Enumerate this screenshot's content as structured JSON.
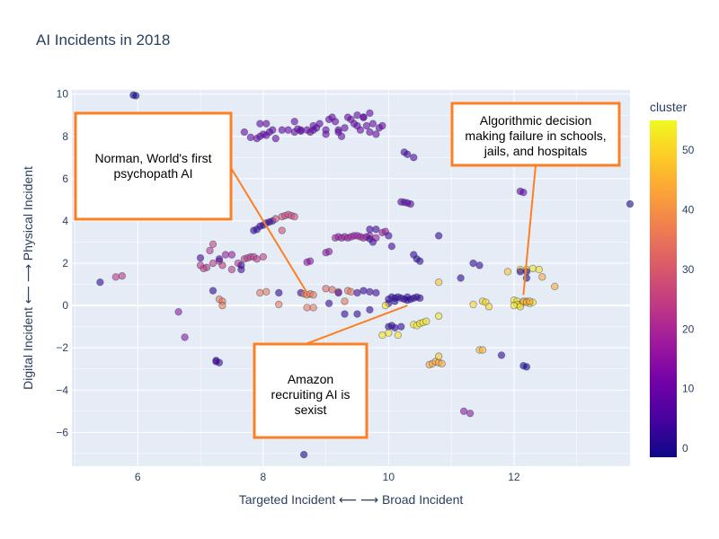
{
  "chart_data": {
    "type": "scatter",
    "title": "AI Incidents in 2018",
    "xlabel": "Targeted Incident ⟵ ⟶ Broad Incident",
    "ylabel": "Digital Incident ⟵ ⟶ Physical Incident",
    "xlim": [
      4.95,
      13.85
    ],
    "ylim": [
      -7.6,
      10.2
    ],
    "x_ticks": [
      6,
      8,
      10,
      12
    ],
    "y_ticks": [
      -6,
      -4,
      -2,
      0,
      2,
      4,
      6,
      8,
      10
    ],
    "grid": true,
    "colorbar": {
      "title": "cluster",
      "range": [
        -1.5,
        55
      ],
      "ticks": [
        0,
        10,
        20,
        30,
        40,
        50
      ]
    },
    "annotations": [
      {
        "lines": [
          "Norman, World's first",
          "psychopath AI"
        ],
        "arrow_to": [
          8.7,
          0.6
        ]
      },
      {
        "lines": [
          "Algorithmic decision",
          "making failure in schools,",
          "jails, and hospitals"
        ],
        "arrow_to": [
          12.15,
          0.5
        ]
      },
      {
        "lines": [
          "Amazon",
          "recruiting AI is",
          "sexist"
        ],
        "arrow_to": [
          10.3,
          0.0
        ]
      }
    ],
    "points": [
      [
        5.93,
        9.95,
        0
      ],
      [
        5.97,
        9.92,
        0
      ],
      [
        7.8,
        7.95,
        10
      ],
      [
        7.9,
        7.9,
        10
      ],
      [
        7.95,
        8.0,
        10
      ],
      [
        8.0,
        8.1,
        10
      ],
      [
        8.05,
        8.05,
        10
      ],
      [
        8.1,
        8.2,
        10
      ],
      [
        8.15,
        8.3,
        10
      ],
      [
        8.2,
        7.9,
        10
      ],
      [
        7.95,
        8.6,
        10
      ],
      [
        8.05,
        8.6,
        10
      ],
      [
        8.3,
        8.3,
        10
      ],
      [
        8.4,
        8.3,
        10
      ],
      [
        8.5,
        8.2,
        10
      ],
      [
        8.55,
        8.35,
        10
      ],
      [
        8.6,
        8.3,
        10
      ],
      [
        8.7,
        8.3,
        10
      ],
      [
        8.75,
        8.2,
        10
      ],
      [
        8.8,
        8.5,
        10
      ],
      [
        8.85,
        8.4,
        10
      ],
      [
        8.9,
        8.6,
        10
      ],
      [
        9.0,
        8.3,
        10
      ],
      [
        9.05,
        8.8,
        10
      ],
      [
        9.1,
        8.9,
        10
      ],
      [
        9.15,
        8.7,
        10
      ],
      [
        9.2,
        8.2,
        10
      ],
      [
        9.25,
        8.0,
        10
      ],
      [
        9.3,
        8.4,
        10
      ],
      [
        9.35,
        8.9,
        10
      ],
      [
        9.4,
        8.8,
        10
      ],
      [
        9.45,
        8.6,
        10
      ],
      [
        9.5,
        8.5,
        10
      ],
      [
        9.55,
        8.3,
        10
      ],
      [
        9.6,
        8.9,
        10
      ],
      [
        9.65,
        8.5,
        10
      ],
      [
        9.7,
        8.2,
        10
      ],
      [
        9.75,
        8.6,
        10
      ],
      [
        9.8,
        8.1,
        10
      ],
      [
        9.85,
        8.4,
        10
      ],
      [
        9.9,
        8.5,
        10
      ],
      [
        7.7,
        8.2,
        10
      ],
      [
        8.5,
        8.7,
        10
      ],
      [
        9.0,
        8.1,
        10
      ],
      [
        9.5,
        9.0,
        10
      ],
      [
        9.6,
        8.9,
        10
      ],
      [
        9.7,
        9.1,
        10
      ],
      [
        8.6,
        8.25,
        10
      ],
      [
        8.8,
        8.3,
        10
      ],
      [
        9.2,
        8.3,
        10
      ],
      [
        10.25,
        7.25,
        5
      ],
      [
        10.3,
        7.15,
        5
      ],
      [
        10.4,
        7.0,
        5
      ],
      [
        7.9,
        3.6,
        3
      ],
      [
        7.95,
        3.75,
        3
      ],
      [
        8.0,
        3.8,
        3
      ],
      [
        8.05,
        3.9,
        3
      ],
      [
        8.1,
        3.95,
        3
      ],
      [
        8.15,
        4.0,
        3
      ],
      [
        7.85,
        3.55,
        3
      ],
      [
        8.3,
        4.2,
        28
      ],
      [
        8.35,
        4.25,
        28
      ],
      [
        8.4,
        4.3,
        28
      ],
      [
        8.45,
        4.25,
        28
      ],
      [
        8.5,
        4.2,
        28
      ],
      [
        8.2,
        4.1,
        28
      ],
      [
        8.3,
        3.55,
        28
      ],
      [
        9.15,
        3.2,
        18
      ],
      [
        9.2,
        3.25,
        18
      ],
      [
        9.25,
        3.2,
        18
      ],
      [
        9.3,
        3.25,
        18
      ],
      [
        9.35,
        3.2,
        18
      ],
      [
        9.4,
        3.25,
        18
      ],
      [
        9.45,
        3.3,
        18
      ],
      [
        9.5,
        3.3,
        18
      ],
      [
        9.55,
        3.25,
        18
      ],
      [
        9.6,
        3.2,
        18
      ],
      [
        9.65,
        3.25,
        18
      ],
      [
        9.7,
        3.3,
        18
      ],
      [
        9.8,
        3.2,
        18
      ],
      [
        9.9,
        3.45,
        18
      ],
      [
        9.95,
        3.5,
        18
      ],
      [
        9.7,
        3.6,
        5
      ],
      [
        9.8,
        3.6,
        5
      ],
      [
        9.7,
        3.15,
        5
      ],
      [
        9.75,
        3.0,
        5
      ],
      [
        10.0,
        3.3,
        5
      ],
      [
        10.05,
        2.8,
        5
      ],
      [
        10.2,
        4.9,
        8
      ],
      [
        10.25,
        4.88,
        8
      ],
      [
        10.3,
        4.85,
        8
      ],
      [
        10.35,
        4.8,
        8
      ],
      [
        10.4,
        2.4,
        3
      ],
      [
        10.5,
        2.1,
        3
      ],
      [
        10.45,
        2.2,
        3
      ],
      [
        10.8,
        3.3,
        3
      ],
      [
        7.0,
        1.9,
        24
      ],
      [
        7.1,
        1.8,
        24
      ],
      [
        7.2,
        2.0,
        24
      ],
      [
        7.3,
        2.1,
        24
      ],
      [
        7.35,
        1.9,
        24
      ],
      [
        7.5,
        1.7,
        24
      ],
      [
        7.6,
        2.0,
        24
      ],
      [
        7.7,
        2.2,
        24
      ],
      [
        7.75,
        2.25,
        24
      ],
      [
        7.8,
        2.3,
        24
      ],
      [
        7.85,
        2.3,
        24
      ],
      [
        7.9,
        2.2,
        24
      ],
      [
        8.0,
        2.3,
        24
      ],
      [
        7.05,
        1.75,
        24
      ],
      [
        7.15,
        2.6,
        24
      ],
      [
        7.2,
        2.9,
        26
      ],
      [
        7.4,
        2.4,
        18
      ],
      [
        7.5,
        2.4,
        18
      ],
      [
        7.0,
        2.25,
        5
      ],
      [
        7.3,
        2.2,
        5
      ],
      [
        7.65,
        1.7,
        5
      ],
      [
        7.65,
        1.9,
        5
      ],
      [
        8.75,
        2.1,
        16
      ],
      [
        8.7,
        2.05,
        16
      ],
      [
        9.0,
        2.5,
        16
      ],
      [
        9.05,
        2.55,
        16
      ],
      [
        5.4,
        1.1,
        3
      ],
      [
        5.65,
        1.35,
        24
      ],
      [
        5.75,
        1.4,
        24
      ],
      [
        6.65,
        -0.3,
        16
      ],
      [
        6.75,
        -1.5,
        16
      ],
      [
        7.25,
        -2.6,
        5
      ],
      [
        7.3,
        -2.7,
        5
      ],
      [
        7.25,
        -2.65,
        5
      ],
      [
        7.3,
        0.3,
        36
      ],
      [
        7.35,
        0.2,
        36
      ],
      [
        7.35,
        0.0,
        36
      ],
      [
        7.2,
        0.7,
        3
      ],
      [
        7.95,
        0.6,
        36
      ],
      [
        8.05,
        0.65,
        36
      ],
      [
        8.25,
        0.05,
        36
      ],
      [
        8.25,
        0.6,
        3
      ],
      [
        8.6,
        0.6,
        5
      ],
      [
        8.65,
        0.55,
        36
      ],
      [
        8.7,
        0.5,
        36
      ],
      [
        8.75,
        0.55,
        36
      ],
      [
        8.8,
        0.5,
        36
      ],
      [
        8.7,
        -0.1,
        36
      ],
      [
        8.8,
        -0.1,
        36
      ],
      [
        9.0,
        0.8,
        33
      ],
      [
        9.1,
        0.75,
        33
      ],
      [
        9.2,
        0.65,
        36
      ],
      [
        9.3,
        0.2,
        36
      ],
      [
        9.05,
        0.1,
        3
      ],
      [
        9.3,
        -0.4,
        3
      ],
      [
        9.5,
        -0.4,
        3
      ],
      [
        9.7,
        -0.2,
        3
      ],
      [
        9.2,
        0.6,
        5
      ],
      [
        9.35,
        0.7,
        36
      ],
      [
        9.4,
        0.65,
        36
      ],
      [
        9.5,
        0.6,
        5
      ],
      [
        9.6,
        0.7,
        3
      ],
      [
        9.7,
        0.65,
        5
      ],
      [
        9.8,
        0.6,
        5
      ],
      [
        10.0,
        0.3,
        3
      ],
      [
        10.05,
        0.4,
        3
      ],
      [
        10.1,
        0.35,
        3
      ],
      [
        10.15,
        0.4,
        3
      ],
      [
        10.2,
        0.35,
        3
      ],
      [
        10.25,
        0.3,
        3
      ],
      [
        10.3,
        0.4,
        3
      ],
      [
        10.35,
        0.3,
        3
      ],
      [
        10.4,
        0.35,
        3
      ],
      [
        10.45,
        0.4,
        3
      ],
      [
        10.5,
        0.35,
        3
      ],
      [
        10.3,
        0.25,
        3
      ],
      [
        10.1,
        0.2,
        3
      ],
      [
        10.0,
        0.1,
        3
      ],
      [
        10.05,
        -0.95,
        3
      ],
      [
        10.1,
        -1.05,
        3
      ],
      [
        10.2,
        -1.0,
        3
      ],
      [
        10.0,
        -1.0,
        3
      ],
      [
        9.95,
        0.0,
        52
      ],
      [
        10.0,
        -1.3,
        52
      ],
      [
        10.15,
        -1.4,
        52
      ],
      [
        9.9,
        -1.4,
        52
      ],
      [
        10.4,
        -0.9,
        52
      ],
      [
        10.45,
        -0.95,
        52
      ],
      [
        10.5,
        -0.85,
        52
      ],
      [
        10.55,
        -0.8,
        52
      ],
      [
        10.6,
        -0.75,
        52
      ],
      [
        10.8,
        -0.5,
        52
      ],
      [
        10.8,
        1.1,
        48
      ],
      [
        10.65,
        -2.8,
        44
      ],
      [
        10.7,
        -2.75,
        44
      ],
      [
        10.75,
        -2.65,
        44
      ],
      [
        10.8,
        -2.7,
        44
      ],
      [
        10.85,
        -2.75,
        44
      ],
      [
        10.8,
        -2.4,
        48
      ],
      [
        11.2,
        -5.0,
        16
      ],
      [
        11.3,
        -5.1,
        16
      ],
      [
        11.45,
        -2.1,
        46
      ],
      [
        11.5,
        -2.1,
        46
      ],
      [
        11.35,
        2.0,
        3
      ],
      [
        11.45,
        1.9,
        3
      ],
      [
        11.15,
        1.3,
        3
      ],
      [
        11.5,
        0.2,
        50
      ],
      [
        11.55,
        0.15,
        50
      ],
      [
        11.35,
        0.05,
        50
      ],
      [
        11.6,
        -0.05,
        50
      ],
      [
        11.8,
        -2.35,
        3
      ],
      [
        11.9,
        1.6,
        48
      ],
      [
        12.1,
        1.7,
        50
      ],
      [
        12.2,
        1.7,
        52
      ],
      [
        12.3,
        1.75,
        52
      ],
      [
        12.4,
        1.7,
        52
      ],
      [
        12.45,
        1.35,
        44
      ],
      [
        12.65,
        0.9,
        44
      ],
      [
        12.0,
        0.25,
        52
      ],
      [
        12.05,
        0.2,
        52
      ],
      [
        12.1,
        0.05,
        52
      ],
      [
        12.15,
        0.15,
        52
      ],
      [
        12.2,
        0.2,
        52
      ],
      [
        12.25,
        0.1,
        52
      ],
      [
        12.3,
        0.15,
        52
      ],
      [
        12.05,
        0.05,
        52
      ],
      [
        12.0,
        0.0,
        52
      ],
      [
        12.1,
        -0.05,
        52
      ],
      [
        12.15,
        0.2,
        44
      ],
      [
        12.2,
        0.15,
        44
      ],
      [
        12.25,
        0.2,
        44
      ],
      [
        12.1,
        5.4,
        10
      ],
      [
        12.15,
        5.35,
        10
      ],
      [
        12.1,
        1.6,
        3
      ],
      [
        12.2,
        1.6,
        3
      ],
      [
        12.2,
        1.3,
        0
      ],
      [
        12.15,
        -2.85,
        0
      ],
      [
        12.2,
        -2.9,
        0
      ],
      [
        13.85,
        4.8,
        0
      ],
      [
        8.65,
        -7.05,
        0
      ]
    ]
  }
}
